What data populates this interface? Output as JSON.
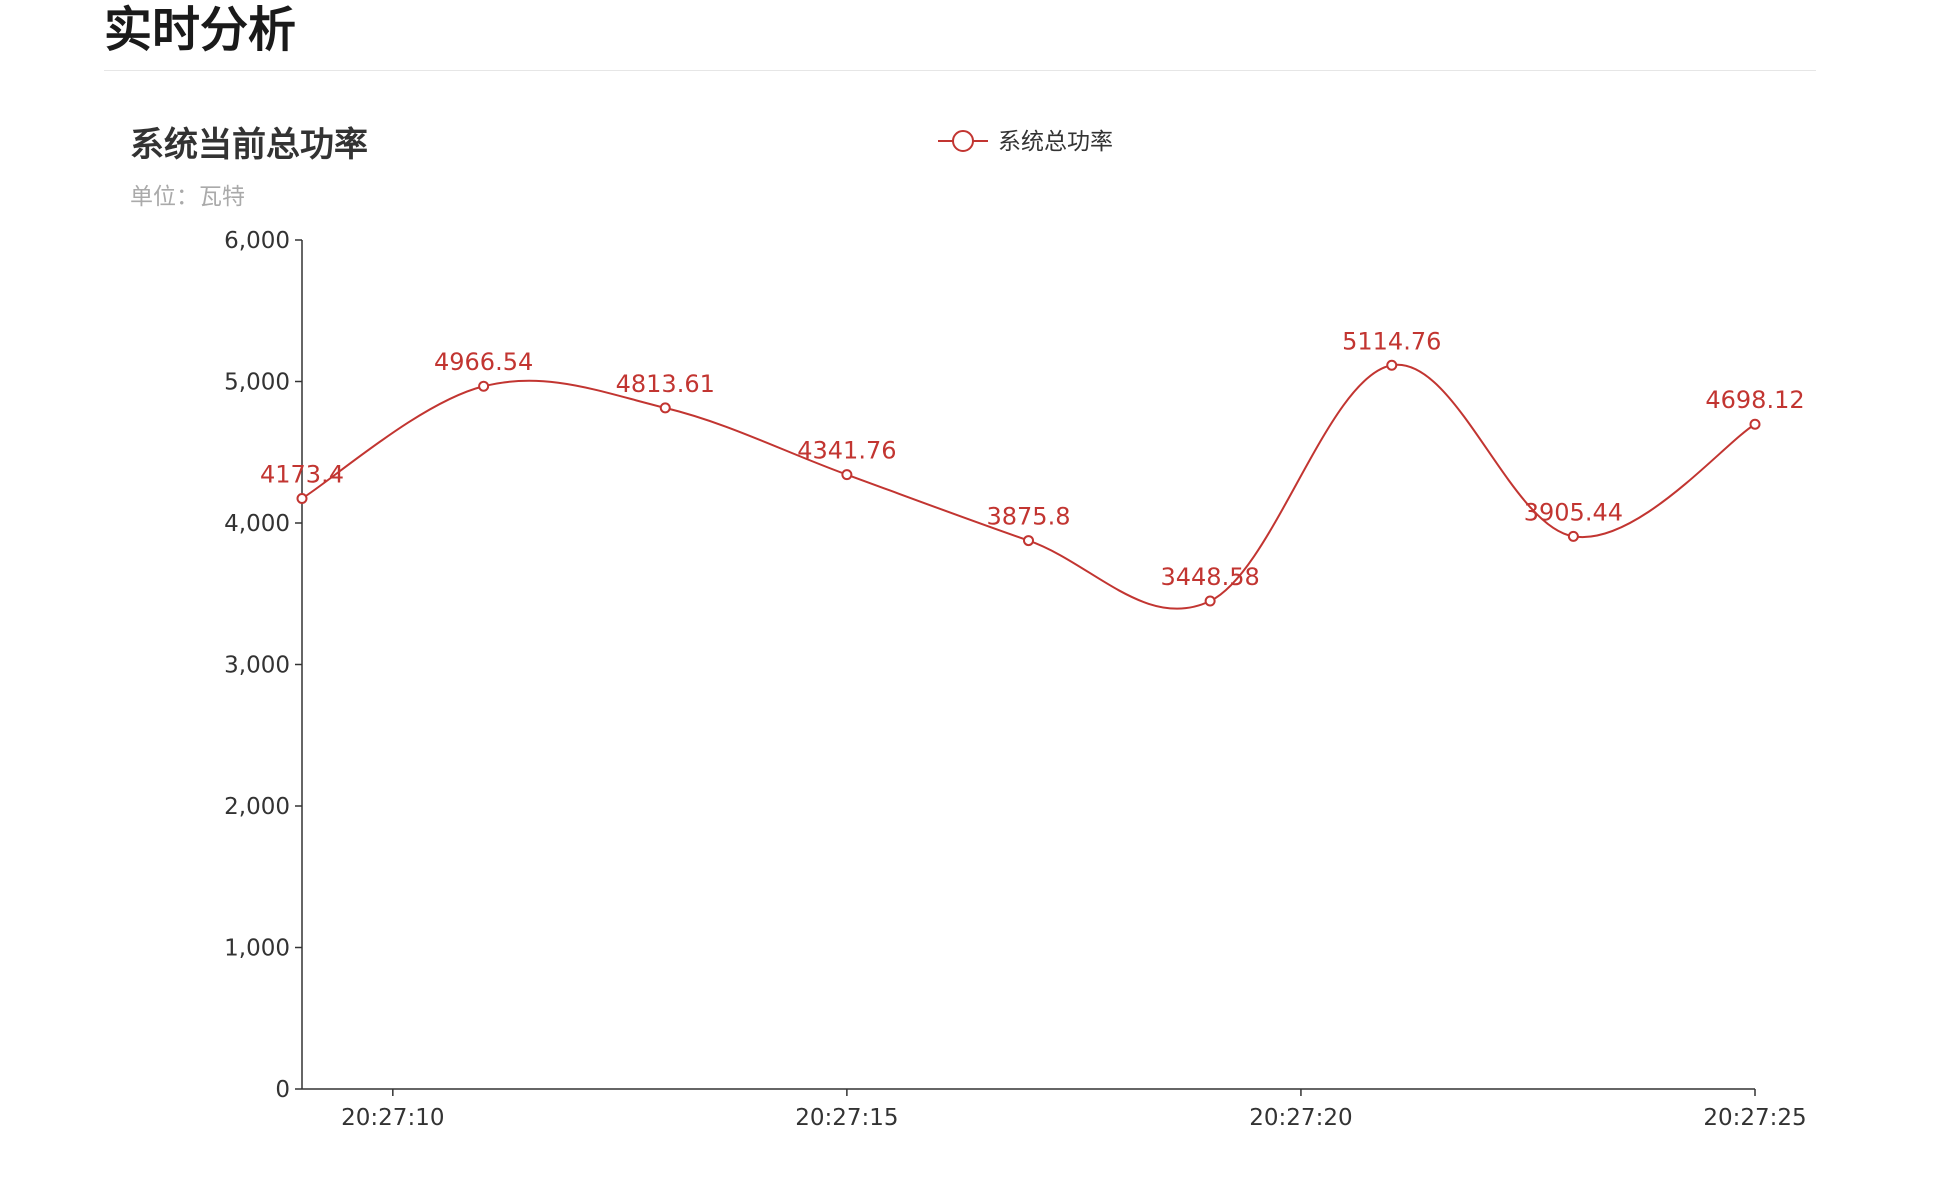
{
  "page": {
    "heading": "实时分析"
  },
  "colors": {
    "series": "#c23531",
    "axis": "#333333",
    "subtitle": "#aaaaaa"
  },
  "chart_data": {
    "type": "line",
    "title": "系统当前总功率",
    "subtitle": "单位：瓦特",
    "smooth": true,
    "legend": {
      "position": "top-center",
      "items": [
        "系统总功率"
      ]
    },
    "grid": false,
    "x_axis": {
      "type": "time",
      "range": [
        "20:27:09",
        "20:27:25"
      ],
      "ticks": [
        "20:27:10",
        "20:27:15",
        "20:27:20",
        "20:27:25"
      ]
    },
    "y_axis": {
      "ylim": [
        0,
        6000
      ],
      "ticks": [
        0,
        1000,
        2000,
        3000,
        4000,
        5000,
        6000
      ],
      "tick_labels": [
        "0",
        "1,000",
        "2,000",
        "3,000",
        "4,000",
        "5,000",
        "6,000"
      ]
    },
    "series": [
      {
        "name": "系统总功率",
        "color": "#c23531",
        "points": [
          {
            "x": "20:27:09",
            "y": 4173.4,
            "label": "4173.4"
          },
          {
            "x": "20:27:11",
            "y": 4966.54,
            "label": "4966.54"
          },
          {
            "x": "20:27:13",
            "y": 4813.61,
            "label": "4813.61"
          },
          {
            "x": "20:27:15",
            "y": 4341.76,
            "label": "4341.76"
          },
          {
            "x": "20:27:17",
            "y": 3875.8,
            "label": "3875.8"
          },
          {
            "x": "20:27:19",
            "y": 3448.58,
            "label": "3448.58"
          },
          {
            "x": "20:27:21",
            "y": 5114.76,
            "label": "5114.76"
          },
          {
            "x": "20:27:23",
            "y": 3905.44,
            "label": "3905.44"
          },
          {
            "x": "20:27:25",
            "y": 4698.12,
            "label": "4698.12"
          }
        ]
      }
    ]
  }
}
